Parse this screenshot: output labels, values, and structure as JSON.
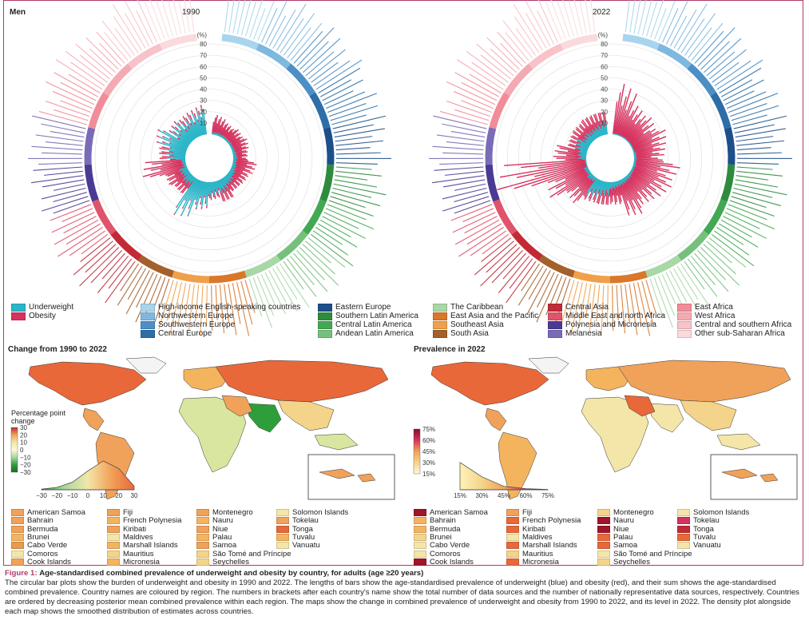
{
  "panel_label": "Men",
  "years": [
    "1990",
    "2022"
  ],
  "percent_axis": [
    "(%)",
    "80",
    "70",
    "60",
    "50",
    "40",
    "30",
    "20",
    "10"
  ],
  "legend_measures": [
    {
      "label": "Underweight",
      "color": "#2bb5c8"
    },
    {
      "label": "Obesity",
      "color": "#d6325e"
    }
  ],
  "regions": [
    {
      "label": "High-income English-speaking countries",
      "color": "#a9d4ee"
    },
    {
      "label": "Northwestern Europe",
      "color": "#7fb8df"
    },
    {
      "label": "Southwestern Europe",
      "color": "#4b8fc6"
    },
    {
      "label": "Central Europe",
      "color": "#2d6ea8"
    },
    {
      "label": "Eastern Europe",
      "color": "#1d4f8a"
    },
    {
      "label": "Southern Latin America",
      "color": "#2e8b3e"
    },
    {
      "label": "Central Latin America",
      "color": "#43a853"
    },
    {
      "label": "Andean Latin America",
      "color": "#77c07c"
    },
    {
      "label": "The Caribbean",
      "color": "#a8d8a5"
    },
    {
      "label": "East Asia and the Pacific",
      "color": "#d9772a"
    },
    {
      "label": "Southeast Asia",
      "color": "#f0a04a"
    },
    {
      "label": "South Asia",
      "color": "#a3602a"
    },
    {
      "label": "Central Asia",
      "color": "#c22a35"
    },
    {
      "label": "Middle East and north Africa",
      "color": "#e0536b"
    },
    {
      "label": "Polynesia and Micronesia",
      "color": "#4a3a94"
    },
    {
      "label": "Melanesia",
      "color": "#7a6bb8"
    },
    {
      "label": "East Africa",
      "color": "#f28c98"
    },
    {
      "label": "West Africa",
      "color": "#f4aab2"
    },
    {
      "label": "Central and southern Africa",
      "color": "#f7c3c8"
    },
    {
      "label": "Other sub-Saharan Africa",
      "color": "#fadadd"
    }
  ],
  "map_left": {
    "title": "Change from 1990 to 2022",
    "colorbar_title": "Percentage point change",
    "colorbar_ticks": [
      "30",
      "20",
      "10",
      "0",
      "−10",
      "−20",
      "−30"
    ],
    "density_ticks": [
      "−30",
      "−20",
      "−10",
      "0",
      "10",
      "20",
      "30"
    ]
  },
  "map_right": {
    "title": "Prevalence in 2022",
    "colorbar_ticks": [
      "75%",
      "60%",
      "45%",
      "30%",
      "15%"
    ],
    "density_ticks": [
      "15%",
      "30%",
      "45%",
      "60%",
      "75%"
    ]
  },
  "island_legend_left": [
    {
      "label": "American Samoa",
      "color": "#f0a25a"
    },
    {
      "label": "Bahrain",
      "color": "#f0a25a"
    },
    {
      "label": "Bermuda",
      "color": "#f0a25a"
    },
    {
      "label": "Brunei",
      "color": "#f4b45e"
    },
    {
      "label": "Cabo Verde",
      "color": "#e89a4e"
    },
    {
      "label": "Comoros",
      "color": "#f4e6a8"
    },
    {
      "label": "Cook Islands",
      "color": "#f0a25a"
    },
    {
      "label": "Fiji",
      "color": "#f0a25a"
    },
    {
      "label": "French Polynesia",
      "color": "#f4b45e"
    },
    {
      "label": "Kiribati",
      "color": "#f0a25a"
    },
    {
      "label": "Maldives",
      "color": "#f4e6a8"
    },
    {
      "label": "Marshall Islands",
      "color": "#f4b45e"
    },
    {
      "label": "Mauritius",
      "color": "#f4d48a"
    },
    {
      "label": "Micronesia",
      "color": "#f4b45e"
    },
    {
      "label": "Montenegro",
      "color": "#f0a25a"
    },
    {
      "label": "Nauru",
      "color": "#f4b45e"
    },
    {
      "label": "Niue",
      "color": "#f0a25a"
    },
    {
      "label": "Palau",
      "color": "#f4b45e"
    },
    {
      "label": "Samoa",
      "color": "#f0a25a"
    },
    {
      "label": "São Tomé and Príncipe",
      "color": "#f4d48a"
    },
    {
      "label": "Seychelles",
      "color": "#f4d48a"
    },
    {
      "label": "Solomon Islands",
      "color": "#f4e6a8"
    },
    {
      "label": "Tokelau",
      "color": "#f0a25a"
    },
    {
      "label": "Tonga",
      "color": "#e8683a"
    },
    {
      "label": "Tuvalu",
      "color": "#f4b45e"
    },
    {
      "label": "Vanuatu",
      "color": "#f4e6a8"
    }
  ],
  "island_legend_right": [
    {
      "label": "American Samoa",
      "color": "#a0152a"
    },
    {
      "label": "Bahrain",
      "color": "#f4b45e"
    },
    {
      "label": "Bermuda",
      "color": "#f4b45e"
    },
    {
      "label": "Brunei",
      "color": "#f4d48a"
    },
    {
      "label": "Cabo Verde",
      "color": "#f4e6a8"
    },
    {
      "label": "Comoros",
      "color": "#f4e6a8"
    },
    {
      "label": "Cook Islands",
      "color": "#a0152a"
    },
    {
      "label": "Fiji",
      "color": "#f0a25a"
    },
    {
      "label": "French Polynesia",
      "color": "#e8683a"
    },
    {
      "label": "Kiribati",
      "color": "#e8683a"
    },
    {
      "label": "Maldives",
      "color": "#f4e6a8"
    },
    {
      "label": "Marshall Islands",
      "color": "#e8683a"
    },
    {
      "label": "Mauritius",
      "color": "#f4d48a"
    },
    {
      "label": "Micronesia",
      "color": "#e8683a"
    },
    {
      "label": "Montenegro",
      "color": "#f4d48a"
    },
    {
      "label": "Nauru",
      "color": "#a0152a"
    },
    {
      "label": "Niue",
      "color": "#a0152a"
    },
    {
      "label": "Palau",
      "color": "#e8683a"
    },
    {
      "label": "Samoa",
      "color": "#e8683a"
    },
    {
      "label": "São Tomé and Príncipe",
      "color": "#f4e6a8"
    },
    {
      "label": "Seychelles",
      "color": "#f4d48a"
    },
    {
      "label": "Solomon Islands",
      "color": "#f4e6a8"
    },
    {
      "label": "Tokelau",
      "color": "#d6325e"
    },
    {
      "label": "Tonga",
      "color": "#c22a35"
    },
    {
      "label": "Tuvalu",
      "color": "#e8683a"
    },
    {
      "label": "Vanuatu",
      "color": "#f4e6a8"
    }
  ],
  "caption": {
    "figure_label": "Figure 1:",
    "title": "Age-standardised combined prevalence of underweight and obesity by country, for adults (age ≥20 years)",
    "body": "The circular bar plots show the burden of underweight and obesity in 1990 and 2022. The lengths of bars show the age-standardised prevalence of underweight (blue) and obesity (red), and their sum shows the age-standardised combined prevalence. Country names are coloured by region. The numbers in brackets after each country's name show the total number of data sources and the number of nationally representative data sources, respectively. Countries are ordered by decreasing posterior mean combined prevalence within each region. The maps show the change in combined prevalence of underweight and obesity from 1990 to 2022, and its level in 2022. The density plot alongside each map shows the smoothed distribution of estimates across countries."
  },
  "chart_data": [
    {
      "type": "bar",
      "subtype": "circular-stacked",
      "title": "1990",
      "series": [
        {
          "name": "Underweight",
          "color": "#2bb5c8"
        },
        {
          "name": "Obesity",
          "color": "#d6325e"
        }
      ],
      "ylim": [
        0,
        80
      ],
      "unit": "%",
      "regions_in_order": [
        "High-income English-speaking countries",
        "Northwestern Europe",
        "Southwestern Europe",
        "Central Europe",
        "Eastern Europe",
        "Southern Latin America",
        "Central Latin America",
        "Andean Latin America",
        "The Caribbean",
        "East Asia and the Pacific",
        "Southeast Asia",
        "South Asia",
        "Central Asia",
        "Middle East and north Africa",
        "Polynesia and Micronesia",
        "Melanesia",
        "East Africa",
        "West Africa",
        "Central and southern Africa",
        "Other sub-Saharan Africa"
      ],
      "underweight_by_region": [
        2,
        2,
        2,
        2,
        3,
        3,
        4,
        6,
        9,
        10,
        18,
        28,
        7,
        6,
        3,
        14,
        22,
        16,
        15,
        18
      ],
      "obesity_by_region": [
        12,
        9,
        10,
        11,
        8,
        14,
        10,
        7,
        8,
        3,
        2,
        1,
        9,
        12,
        28,
        6,
        2,
        3,
        4,
        3
      ]
    },
    {
      "type": "bar",
      "subtype": "circular-stacked",
      "title": "2022",
      "series": [
        {
          "name": "Underweight",
          "color": "#2bb5c8"
        },
        {
          "name": "Obesity",
          "color": "#d6325e"
        }
      ],
      "ylim": [
        0,
        80
      ],
      "unit": "%",
      "regions_in_order": [
        "High-income English-speaking countries",
        "Northwestern Europe",
        "Southwestern Europe",
        "Central Europe",
        "Eastern Europe",
        "Southern Latin America",
        "Central Latin America",
        "Andean Latin America",
        "The Caribbean",
        "East Asia and the Pacific",
        "Southeast Asia",
        "South Asia",
        "Central Asia",
        "Middle East and north Africa",
        "Polynesia and Micronesia",
        "Melanesia",
        "East Africa",
        "West Africa",
        "Central and southern Africa",
        "Other sub-Saharan Africa"
      ],
      "underweight_by_region": [
        1,
        1,
        1,
        1,
        2,
        2,
        2,
        3,
        4,
        5,
        10,
        13,
        4,
        3,
        1,
        6,
        10,
        7,
        7,
        9
      ],
      "obesity_by_region": [
        34,
        23,
        22,
        25,
        20,
        30,
        28,
        22,
        24,
        12,
        8,
        5,
        20,
        30,
        62,
        18,
        6,
        10,
        11,
        9
      ]
    },
    {
      "type": "heatmap",
      "subtype": "choropleth",
      "title": "Change from 1990 to 2022",
      "scale_label": "Percentage point change",
      "scale_range": [
        -30,
        30
      ],
      "density_x": [
        -30,
        -20,
        -10,
        0,
        10,
        20,
        30
      ],
      "density_y": [
        0.02,
        0.08,
        0.25,
        0.62,
        0.95,
        0.7,
        0.12
      ]
    },
    {
      "type": "heatmap",
      "subtype": "choropleth",
      "title": "Prevalence in 2022",
      "scale_range": [
        15,
        75
      ],
      "scale_unit": "%",
      "density_x": [
        15,
        30,
        45,
        60,
        75
      ],
      "density_y": [
        0.95,
        0.45,
        0.12,
        0.04,
        0.01
      ]
    }
  ]
}
